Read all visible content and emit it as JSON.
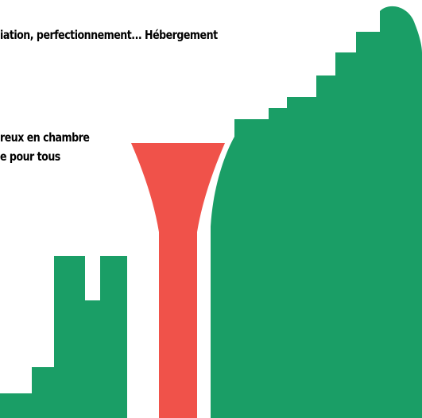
{
  "captions": {
    "line1": "iation, perfectionnement... Hébergement",
    "line2": "reux en chambre",
    "line3": "e pour tous"
  },
  "colors": {
    "green": "#1a9e66",
    "red": "#f0524a",
    "background": "#ffffff",
    "text": "#000000"
  }
}
